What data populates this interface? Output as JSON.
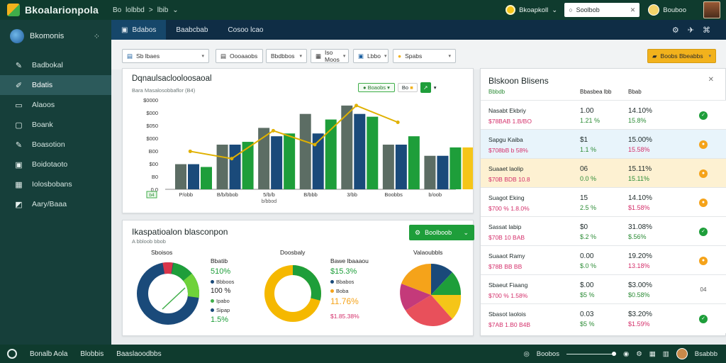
{
  "app": {
    "title": "Bkoalarionpola",
    "breadcrumb": [
      "Bo",
      "lolbbd",
      ">",
      "lbib"
    ]
  },
  "top": {
    "status": "Bkoapkoll",
    "search_value": "Soolbob",
    "user": "Bouboo"
  },
  "sidebar": {
    "brand": "Bkomonis",
    "items": [
      {
        "icon": "pencil-icon",
        "label": "Badbokal"
      },
      {
        "icon": "edit-icon",
        "label": "Bdatis",
        "active": true
      },
      {
        "icon": "window-icon",
        "label": "Alaoos"
      },
      {
        "icon": "window-icon",
        "label": "Boank"
      },
      {
        "icon": "pencil-icon",
        "label": "Boasotion"
      },
      {
        "icon": "calendar-icon",
        "label": "Boidotaoto"
      },
      {
        "icon": "table-icon",
        "label": "Iolosbobans"
      },
      {
        "icon": "chart-icon",
        "label": "Aary/Baaa"
      }
    ]
  },
  "tabs": [
    {
      "label": "Bdabos",
      "active": true
    },
    {
      "label": "Baabcbab"
    },
    {
      "label": "Cosoo lcao"
    }
  ],
  "filters": [
    {
      "label": "Sb lbaes"
    },
    {
      "label": "Oooaaobs"
    },
    {
      "label": "Bbdbbos"
    },
    {
      "label": "Iso Moos"
    },
    {
      "label": "Lbbo"
    },
    {
      "label": "Spabs"
    }
  ],
  "primary_action": "Boobs Bbeabbs",
  "chart_card": {
    "title": "Dqnaulsaclooloosaoal",
    "subtitle": "Bara Masalosobbaflor (B4)",
    "seg_label": "Boaobs",
    "seg_label2": "Bo"
  },
  "chart_data": {
    "type": "bar",
    "categories": [
      "P/obb",
      "B/b/bbob",
      "5/b/b",
      "B/bbb",
      "3/bb",
      "Boobbs",
      "b/oob"
    ],
    "yticks": [
      "$0000",
      "$000",
      "$050",
      "$000",
      "B00",
      "$00",
      "B0",
      "0.0"
    ],
    "series": [
      {
        "name": "",
        "color": "#5c6d64",
        "values": [
          45,
          80,
          110,
          135,
          150,
          80,
          60
        ]
      },
      {
        "name": "",
        "color": "#1a4a7a",
        "values": [
          45,
          80,
          95,
          100,
          135,
          80,
          60
        ]
      },
      {
        "name": "",
        "color": "#1e9e3a",
        "values": [
          40,
          85,
          100,
          125,
          130,
          95,
          75
        ]
      },
      {
        "name": "",
        "color": "#f5c518",
        "values": [
          0,
          0,
          0,
          0,
          0,
          0,
          75
        ]
      }
    ],
    "line": [
      68,
      55,
      105,
      80,
      150,
      120,
      0
    ],
    "footnote": "b/bbod",
    "badge": "b4"
  },
  "pie_card": {
    "title": "Ikaspatioalon blasconpon",
    "subtitle": "A  bbloob bbob",
    "button": "Boolboob",
    "pies": [
      {
        "title": "Sboisos",
        "values": [
          "Bbatib",
          "510%",
          "Bbboos",
          "100 %",
          "Ipabo",
          "Sipap",
          "1.5%"
        ]
      },
      {
        "title": "Doosbaly",
        "values": [
          "Bawe lbaaaou",
          "$15.3%",
          "Bbabos",
          "Boba",
          "11.76%",
          "$1.85.38%"
        ]
      },
      {
        "title": "Valaoubbls"
      }
    ]
  },
  "right_panel": {
    "title": "Blskoon Blisens",
    "columns": [
      "Bbbdb",
      "Bbasbea lbb",
      "Bbab"
    ],
    "rows": [
      {
        "name": "Nasabt Ekbriy",
        "sub": "$78BAB 1.B/BO",
        "val": "1.00",
        "val_sub": "1.21 %",
        "pct": "14.10%",
        "pct_sub": "15.8%",
        "status": "ok"
      },
      {
        "name": "Sapgu Kaiba",
        "sub": "$708bB b 58%",
        "val": "$1",
        "val_sub": "1.1 %",
        "pct": "15.00%",
        "pct_sub": "15.58%",
        "status": "warn"
      },
      {
        "name": "Suaaet laolip",
        "sub": "$70B BDB 10.8",
        "val": "06",
        "val_sub": "0.0 %",
        "pct": "15.11%",
        "pct_sub": "15.11%",
        "status": "warn"
      },
      {
        "name": "Suagot Eking",
        "sub": "$700 % 1.8.0%",
        "val": "15",
        "val_sub": "2.5 %",
        "pct": "14.10%",
        "pct_sub": "$1.58%",
        "status": "warn"
      },
      {
        "name": "Sassat labip",
        "sub": "$70B 10 BAB",
        "val": "$0",
        "val_sub": "$.2 %",
        "pct": "31.08%",
        "pct_sub": "$.56%",
        "status": "ok"
      },
      {
        "name": "Suaaot Ramy",
        "sub": "$78B BB BB",
        "val": "0.00",
        "val_sub": "$.0 %",
        "pct": "19.20%",
        "pct_sub": "13.18%",
        "status": "warn"
      },
      {
        "name": "Sbaeut Fiaang",
        "sub": "$700 % 1.58%",
        "val": "$.00",
        "val_sub": "$5 %",
        "pct": "$3.00%",
        "pct_sub": "$0.58%",
        "status": "text"
      },
      {
        "name": "Sbasot laolois",
        "sub": "$7AB 1.B0 B4B",
        "val": "0.03",
        "val_sub": "$5 %",
        "pct": "$3.20%",
        "pct_sub": "$1.59%",
        "status": "ok"
      }
    ]
  },
  "bottom": {
    "left": [
      "Bonalb Aola",
      "Blobbis",
      "Baaslaoodbbs"
    ],
    "right_label": "Boobos",
    "user": "Bsabbb"
  },
  "colors": {
    "green": "#1e9e3a",
    "navy": "#1a4a7a",
    "yellow": "#f5c518",
    "gray": "#5c6d64",
    "orange": "#f5a31a"
  }
}
